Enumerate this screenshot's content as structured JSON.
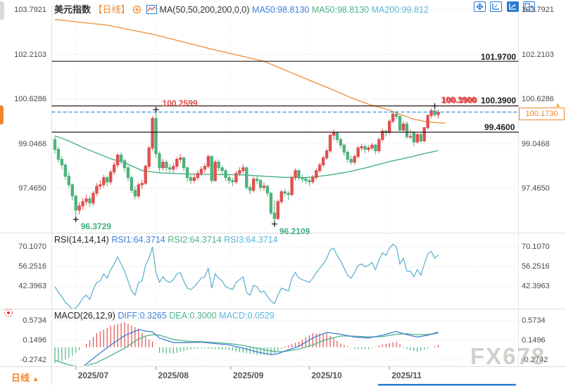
{
  "header": {
    "symbol": "美元指数",
    "period_tag": "【日线】",
    "ma_settings": "MA(50,50,200,200,0,0)",
    "ma_items": [
      {
        "label": "MA50:98.8130",
        "color": "#3f7fd6"
      },
      {
        "label": "MA50:98.8130",
        "color": "#4db389"
      },
      {
        "label": "MA200:99.812",
        "color": "#58b7d8"
      }
    ]
  },
  "toolbar_icons": [
    "move-icon",
    "axis-zoom-icon",
    "axis-scale-icon",
    "collapse-right-icon"
  ],
  "rsi_header": {
    "title": "RSI(14,14,14)",
    "items": [
      {
        "label": "RSI1:64.3714",
        "color": "#3f7fd6"
      },
      {
        "label": "RSI2:64.3714",
        "color": "#4db389"
      },
      {
        "label": "RSI3:64.3714",
        "color": "#58b7d8"
      }
    ]
  },
  "macd_header": {
    "title": "MACD(26,12,9)",
    "items": [
      {
        "label": "DIFF:0.3265",
        "color": "#3f7fd6"
      },
      {
        "label": "DEA:0.3000",
        "color": "#4db389"
      },
      {
        "label": "MACD:0.0529",
        "color": "#58b7d8"
      }
    ]
  },
  "axes": {
    "price_ticks": [
      "103.7921",
      "102.2103",
      "100.6286",
      "99.0468",
      "97.4650"
    ],
    "price_tick_values": [
      103.7921,
      102.2103,
      100.6286,
      99.0468,
      97.465
    ],
    "rsi_ticks": [
      "70.1070",
      "56.2516",
      "42.3963"
    ],
    "rsi_tick_values": [
      70.107,
      56.2516,
      42.3963
    ],
    "macd_ticks": [
      "0.5734",
      "0.1496",
      "-0.2742"
    ],
    "macd_tick_values": [
      0.5734,
      0.1496,
      -0.2742
    ],
    "x_labels": [
      {
        "label": "2025/07",
        "i": 6
      },
      {
        "label": "2025/08",
        "i": 29
      },
      {
        "label": "2025/09",
        "i": 50.5
      },
      {
        "label": "2025/10",
        "i": 73
      },
      {
        "label": "2025/11",
        "i": 96
      }
    ]
  },
  "annotations": {
    "hlines": [
      {
        "value": 101.97,
        "label": "101.9700"
      },
      {
        "value": 100.39,
        "label": "100.3900"
      },
      {
        "value": 99.46,
        "label": "99.4600"
      }
    ],
    "hline_red_label": "100.3900",
    "current_price": {
      "value": 100.173,
      "label": "100.1730"
    }
  },
  "bottom": {
    "period_label": "日线",
    "arrow": "▲"
  },
  "watermark": "FX678",
  "colors": {
    "up": "#e0504e",
    "down": "#4fb27e",
    "ma50_line": "#3aae7e",
    "ma200_line": "#f08c36",
    "rsi_line": "#58aecb",
    "diff_line": "#3f7fd6",
    "dea_line": "#4db389",
    "accent_orange": "#f0872f",
    "current_price_line": "#2e8de0",
    "annotation_red": "#e04a4a"
  },
  "chart_data": {
    "type": "candlestick+indicators",
    "title": "美元指数 日线 (US Dollar Index, daily)",
    "price_axis_range": [
      96.0,
      104.2
    ],
    "candles_ohlc": [
      [
        99.2,
        99.32,
        98.7,
        98.85
      ],
      [
        98.85,
        98.95,
        98.38,
        98.5
      ],
      [
        98.5,
        98.62,
        98.15,
        98.3
      ],
      [
        98.3,
        98.35,
        97.78,
        97.9
      ],
      [
        97.9,
        98.05,
        97.48,
        97.6
      ],
      [
        97.6,
        97.65,
        97.05,
        97.2
      ],
      [
        97.2,
        97.25,
        96.37,
        96.7
      ],
      [
        96.7,
        96.98,
        96.55,
        96.85
      ],
      [
        96.85,
        97.12,
        96.72,
        97.0
      ],
      [
        97.0,
        97.25,
        96.88,
        97.1
      ],
      [
        97.1,
        97.18,
        96.8,
        96.95
      ],
      [
        96.95,
        97.38,
        96.85,
        97.3
      ],
      [
        97.3,
        97.66,
        97.2,
        97.55
      ],
      [
        97.55,
        97.75,
        97.42,
        97.6
      ],
      [
        97.6,
        97.95,
        97.5,
        97.85
      ],
      [
        97.85,
        97.92,
        97.55,
        97.7
      ],
      [
        97.7,
        98.12,
        97.6,
        98.05
      ],
      [
        98.05,
        98.42,
        97.95,
        98.3
      ],
      [
        98.3,
        98.72,
        98.2,
        98.65
      ],
      [
        98.65,
        98.75,
        98.32,
        98.45
      ],
      [
        98.45,
        98.52,
        98.05,
        98.2
      ],
      [
        98.2,
        98.28,
        97.72,
        97.85
      ],
      [
        97.85,
        97.92,
        97.3,
        97.4
      ],
      [
        97.4,
        97.55,
        97.08,
        97.2
      ],
      [
        97.2,
        97.68,
        97.12,
        97.6
      ],
      [
        97.6,
        97.78,
        97.45,
        97.65
      ],
      [
        97.65,
        98.32,
        97.58,
        98.25
      ],
      [
        98.25,
        98.98,
        98.15,
        98.9
      ],
      [
        98.9,
        100.02,
        98.82,
        99.95
      ],
      [
        99.95,
        100.26,
        98.55,
        98.7
      ],
      [
        98.7,
        98.78,
        98.05,
        98.2
      ],
      [
        98.2,
        98.52,
        98.1,
        98.4
      ],
      [
        98.4,
        98.48,
        98.08,
        98.2
      ],
      [
        98.2,
        98.32,
        97.98,
        98.15
      ],
      [
        98.15,
        98.38,
        98.02,
        98.25
      ],
      [
        98.25,
        98.58,
        98.15,
        98.5
      ],
      [
        98.5,
        98.68,
        98.38,
        98.55
      ],
      [
        98.55,
        98.6,
        98.08,
        98.2
      ],
      [
        98.2,
        98.25,
        97.72,
        97.85
      ],
      [
        97.85,
        97.95,
        97.62,
        97.75
      ],
      [
        97.75,
        97.98,
        97.65,
        97.85
      ],
      [
        97.85,
        98.1,
        97.75,
        98.0
      ],
      [
        98.0,
        98.25,
        97.9,
        98.15
      ],
      [
        98.15,
        98.35,
        98.02,
        98.25
      ],
      [
        98.25,
        98.68,
        98.18,
        98.6
      ],
      [
        98.6,
        98.65,
        97.65,
        97.75
      ],
      [
        97.75,
        98.48,
        97.7,
        98.4
      ],
      [
        98.4,
        98.5,
        98.08,
        98.2
      ],
      [
        98.2,
        98.28,
        97.95,
        98.1
      ],
      [
        98.1,
        98.15,
        97.72,
        97.85
      ],
      [
        97.85,
        97.95,
        97.62,
        97.75
      ],
      [
        97.75,
        97.85,
        97.55,
        97.7
      ],
      [
        97.7,
        98.08,
        97.62,
        98.0
      ],
      [
        98.0,
        98.22,
        97.9,
        98.1
      ],
      [
        98.1,
        98.32,
        98.0,
        98.2
      ],
      [
        98.2,
        98.25,
        97.42,
        97.5
      ],
      [
        97.5,
        97.6,
        97.25,
        97.4
      ],
      [
        97.4,
        97.88,
        97.32,
        97.8
      ],
      [
        97.8,
        97.92,
        97.62,
        97.75
      ],
      [
        97.75,
        97.8,
        97.4,
        97.5
      ],
      [
        97.5,
        97.68,
        97.38,
        97.55
      ],
      [
        97.55,
        97.6,
        97.18,
        97.3
      ],
      [
        97.3,
        97.35,
        96.52,
        96.6
      ],
      [
        96.6,
        97.05,
        96.21,
        96.4
      ],
      [
        96.4,
        97.08,
        96.35,
        97.0
      ],
      [
        97.0,
        97.42,
        96.92,
        97.35
      ],
      [
        97.35,
        97.45,
        97.18,
        97.3
      ],
      [
        97.3,
        97.38,
        97.05,
        97.25
      ],
      [
        97.25,
        97.92,
        97.2,
        97.85
      ],
      [
        97.85,
        98.18,
        97.75,
        98.1
      ],
      [
        98.1,
        98.15,
        97.75,
        97.85
      ],
      [
        97.85,
        97.95,
        97.68,
        97.8
      ],
      [
        97.8,
        97.88,
        97.62,
        97.75
      ],
      [
        97.75,
        97.82,
        97.55,
        97.7
      ],
      [
        97.7,
        97.95,
        97.62,
        97.85
      ],
      [
        97.85,
        98.18,
        97.78,
        98.1
      ],
      [
        98.1,
        98.38,
        98.02,
        98.3
      ],
      [
        98.3,
        98.62,
        98.22,
        98.55
      ],
      [
        98.55,
        98.88,
        98.48,
        98.8
      ],
      [
        98.8,
        99.42,
        98.72,
        99.35
      ],
      [
        99.35,
        99.56,
        99.18,
        99.45
      ],
      [
        99.45,
        99.5,
        99.08,
        99.2
      ],
      [
        99.2,
        99.28,
        98.88,
        99.0
      ],
      [
        99.0,
        99.05,
        98.62,
        98.75
      ],
      [
        98.75,
        98.82,
        98.38,
        98.5
      ],
      [
        98.5,
        98.62,
        98.3,
        98.4
      ],
      [
        98.4,
        98.68,
        98.32,
        98.6
      ],
      [
        98.6,
        98.98,
        98.52,
        98.9
      ],
      [
        98.9,
        99.05,
        98.8,
        98.95
      ],
      [
        98.95,
        99.02,
        98.72,
        98.85
      ],
      [
        98.85,
        98.98,
        98.75,
        98.9
      ],
      [
        98.9,
        99.08,
        98.82,
        99.0
      ],
      [
        99.0,
        99.05,
        98.68,
        98.8
      ],
      [
        98.8,
        99.28,
        98.72,
        99.2
      ],
      [
        99.2,
        99.58,
        99.12,
        99.5
      ],
      [
        99.5,
        99.55,
        99.3,
        99.45
      ],
      [
        99.45,
        99.92,
        99.38,
        99.85
      ],
      [
        99.85,
        100.18,
        99.78,
        100.1
      ],
      [
        100.1,
        100.22,
        99.92,
        100.02
      ],
      [
        100.02,
        100.08,
        99.45,
        99.53
      ],
      [
        99.53,
        99.85,
        99.45,
        99.75
      ],
      [
        99.75,
        99.85,
        99.22,
        99.3
      ],
      [
        99.3,
        99.56,
        99.2,
        99.31
      ],
      [
        99.45,
        99.5,
        98.96,
        99.11
      ],
      [
        99.11,
        99.42,
        99.05,
        99.38
      ],
      [
        99.38,
        99.42,
        99.08,
        99.15
      ],
      [
        99.15,
        99.65,
        99.1,
        99.62
      ],
      [
        99.62,
        100.1,
        99.55,
        100.05
      ],
      [
        100.05,
        100.3,
        99.95,
        100.22
      ],
      [
        100.22,
        100.39,
        100.02,
        100.08
      ],
      [
        100.08,
        100.26,
        99.95,
        100.17
      ]
    ],
    "ma50_anchors": [
      [
        0,
        99.33
      ],
      [
        4,
        99.15
      ],
      [
        8,
        98.92
      ],
      [
        12,
        98.72
      ],
      [
        16,
        98.52
      ],
      [
        20,
        98.38
      ],
      [
        25,
        98.1
      ],
      [
        30,
        98.02
      ],
      [
        36,
        97.99
      ],
      [
        42,
        97.97
      ],
      [
        48,
        97.96
      ],
      [
        54,
        97.95
      ],
      [
        60,
        97.9
      ],
      [
        66,
        97.86
      ],
      [
        72,
        97.85
      ],
      [
        78,
        97.93
      ],
      [
        84,
        98.05
      ],
      [
        90,
        98.22
      ],
      [
        96,
        98.42
      ],
      [
        102,
        98.58
      ],
      [
        106,
        98.7
      ],
      [
        110,
        98.81
      ]
    ],
    "ma200_anchors": [
      [
        0,
        103.45
      ],
      [
        15,
        103.25
      ],
      [
        29,
        102.9
      ],
      [
        45,
        102.4
      ],
      [
        60,
        101.97
      ],
      [
        73,
        101.3
      ],
      [
        80,
        100.95
      ],
      [
        85,
        100.68
      ],
      [
        90,
        100.45
      ],
      [
        95,
        100.28
      ],
      [
        99,
        100.1
      ],
      [
        103,
        99.92
      ],
      [
        107,
        99.82
      ],
      [
        112,
        99.78
      ]
    ],
    "rsi_values": [
      42,
      38,
      35,
      31,
      29,
      26,
      27,
      30,
      34,
      36,
      33,
      40,
      45,
      46,
      51,
      48,
      54,
      58,
      63,
      58,
      53,
      46,
      39,
      36,
      45,
      46,
      57,
      62,
      70,
      52,
      45,
      49,
      46,
      45,
      47,
      51,
      52,
      46,
      41,
      40,
      42,
      45,
      48,
      49,
      55,
      41,
      51,
      48,
      46,
      42,
      41,
      40,
      45,
      47,
      49,
      38,
      36,
      43,
      42,
      38,
      39,
      35,
      32,
      30,
      36,
      41,
      40,
      39,
      48,
      52,
      48,
      47,
      46,
      45,
      48,
      52,
      55,
      58,
      62,
      68,
      69,
      64,
      60,
      55,
      50,
      48,
      52,
      57,
      58,
      56,
      57,
      59,
      54,
      61,
      66,
      64,
      69,
      72,
      70,
      58,
      62,
      53,
      53,
      49,
      54,
      50,
      58,
      65,
      67,
      62,
      64.37
    ],
    "macd": {
      "diff_anchors": [
        [
          0,
          -0.45
        ],
        [
          4,
          -0.5
        ],
        [
          8,
          -0.42
        ],
        [
          12,
          -0.18
        ],
        [
          16,
          0.05
        ],
        [
          20,
          0.25
        ],
        [
          24,
          0.38
        ],
        [
          26,
          0.35
        ],
        [
          28,
          0.33
        ],
        [
          30,
          0.2
        ],
        [
          34,
          0.1
        ],
        [
          38,
          0.1
        ],
        [
          42,
          0.11
        ],
        [
          46,
          0.08
        ],
        [
          50,
          0.05
        ],
        [
          54,
          -0.02
        ],
        [
          58,
          -0.1
        ],
        [
          62,
          -0.16
        ],
        [
          64,
          -0.14
        ],
        [
          66,
          -0.08
        ],
        [
          70,
          0.02
        ],
        [
          74,
          0.2
        ],
        [
          78,
          0.32
        ],
        [
          82,
          0.28
        ],
        [
          86,
          0.22
        ],
        [
          90,
          0.2
        ],
        [
          94,
          0.26
        ],
        [
          98,
          0.34
        ],
        [
          101,
          0.27
        ],
        [
          104,
          0.22
        ],
        [
          107,
          0.26
        ],
        [
          110,
          0.3265
        ]
      ],
      "dea_anchors": [
        [
          0,
          -0.28
        ],
        [
          4,
          -0.38
        ],
        [
          8,
          -0.42
        ],
        [
          12,
          -0.33
        ],
        [
          16,
          -0.18
        ],
        [
          20,
          -0.02
        ],
        [
          24,
          0.18
        ],
        [
          26,
          0.24
        ],
        [
          28,
          0.27
        ],
        [
          30,
          0.26
        ],
        [
          34,
          0.17
        ],
        [
          38,
          0.13
        ],
        [
          42,
          0.12
        ],
        [
          46,
          0.1
        ],
        [
          50,
          0.08
        ],
        [
          54,
          0.04
        ],
        [
          58,
          -0.02
        ],
        [
          62,
          -0.08
        ],
        [
          64,
          -0.1
        ],
        [
          66,
          -0.09
        ],
        [
          70,
          -0.04
        ],
        [
          74,
          0.05
        ],
        [
          78,
          0.17
        ],
        [
          82,
          0.24
        ],
        [
          86,
          0.24
        ],
        [
          90,
          0.22
        ],
        [
          94,
          0.23
        ],
        [
          98,
          0.28
        ],
        [
          101,
          0.29
        ],
        [
          104,
          0.27
        ],
        [
          107,
          0.275
        ],
        [
          110,
          0.3
        ]
      ]
    },
    "markers": [
      {
        "i": 6,
        "side": "low",
        "label": "96.3729"
      },
      {
        "i": 29,
        "side": "high",
        "label": "100.2599"
      },
      {
        "i": 63,
        "side": "low",
        "label": "96.2109"
      },
      {
        "i": 109,
        "side": "high",
        "label": "100.3900"
      }
    ]
  }
}
